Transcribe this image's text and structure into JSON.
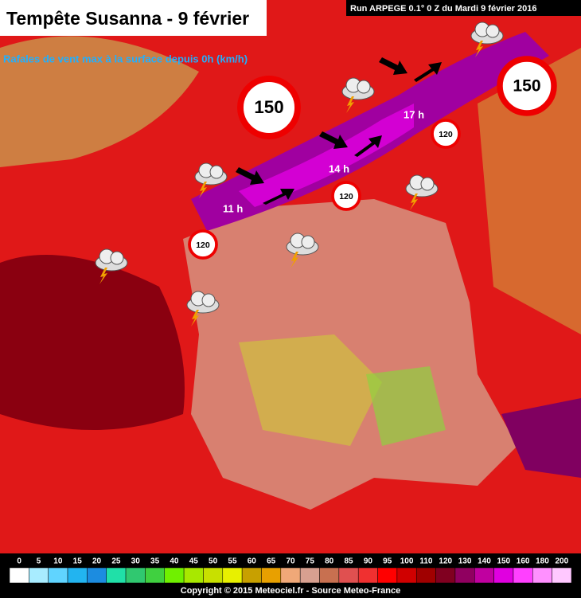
{
  "header": {
    "title": "Tempête Susanna - 9 février",
    "subtitle": "Rafales de vent max à la surface depuis 0h (km/h)",
    "run": "Run ARPEGE 0.1° 0 Z du Mardi 9 février 2016"
  },
  "map": {
    "signs": [
      "150",
      "150",
      "120",
      "120",
      "120"
    ],
    "times": [
      "11 h",
      "14 h",
      "17 h"
    ]
  },
  "legend": {
    "items": [
      {
        "label": "0",
        "color": "#ffffff"
      },
      {
        "label": "5",
        "color": "#a8ecff"
      },
      {
        "label": "10",
        "color": "#60d4ff"
      },
      {
        "label": "15",
        "color": "#22b4f0"
      },
      {
        "label": "20",
        "color": "#1c8ce0"
      },
      {
        "label": "25",
        "color": "#20e0a8"
      },
      {
        "label": "30",
        "color": "#30c870"
      },
      {
        "label": "35",
        "color": "#40d040"
      },
      {
        "label": "40",
        "color": "#70f000"
      },
      {
        "label": "45",
        "color": "#a8e800"
      },
      {
        "label": "50",
        "color": "#c8e000"
      },
      {
        "label": "55",
        "color": "#e8f000"
      },
      {
        "label": "60",
        "color": "#c8a000"
      },
      {
        "label": "65",
        "color": "#e8a000"
      },
      {
        "label": "70",
        "color": "#f0a878"
      },
      {
        "label": "75",
        "color": "#d8a090"
      },
      {
        "label": "80",
        "color": "#c87050"
      },
      {
        "label": "85",
        "color": "#e05050"
      },
      {
        "label": "90",
        "color": "#f03030"
      },
      {
        "label": "95",
        "color": "#ff0000"
      },
      {
        "label": "100",
        "color": "#d00000"
      },
      {
        "label": "110",
        "color": "#a00000"
      },
      {
        "label": "120",
        "color": "#800020"
      },
      {
        "label": "130",
        "color": "#900060"
      },
      {
        "label": "140",
        "color": "#c000a0"
      },
      {
        "label": "150",
        "color": "#e000e0"
      },
      {
        "label": "160",
        "color": "#ff40ff"
      },
      {
        "label": "180",
        "color": "#ff90ff"
      },
      {
        "label": "200",
        "color": "#ffc8ff"
      }
    ]
  },
  "footer": {
    "copyright": "Copyright © 2015 Meteociel.fr - Source Meteo-France"
  }
}
